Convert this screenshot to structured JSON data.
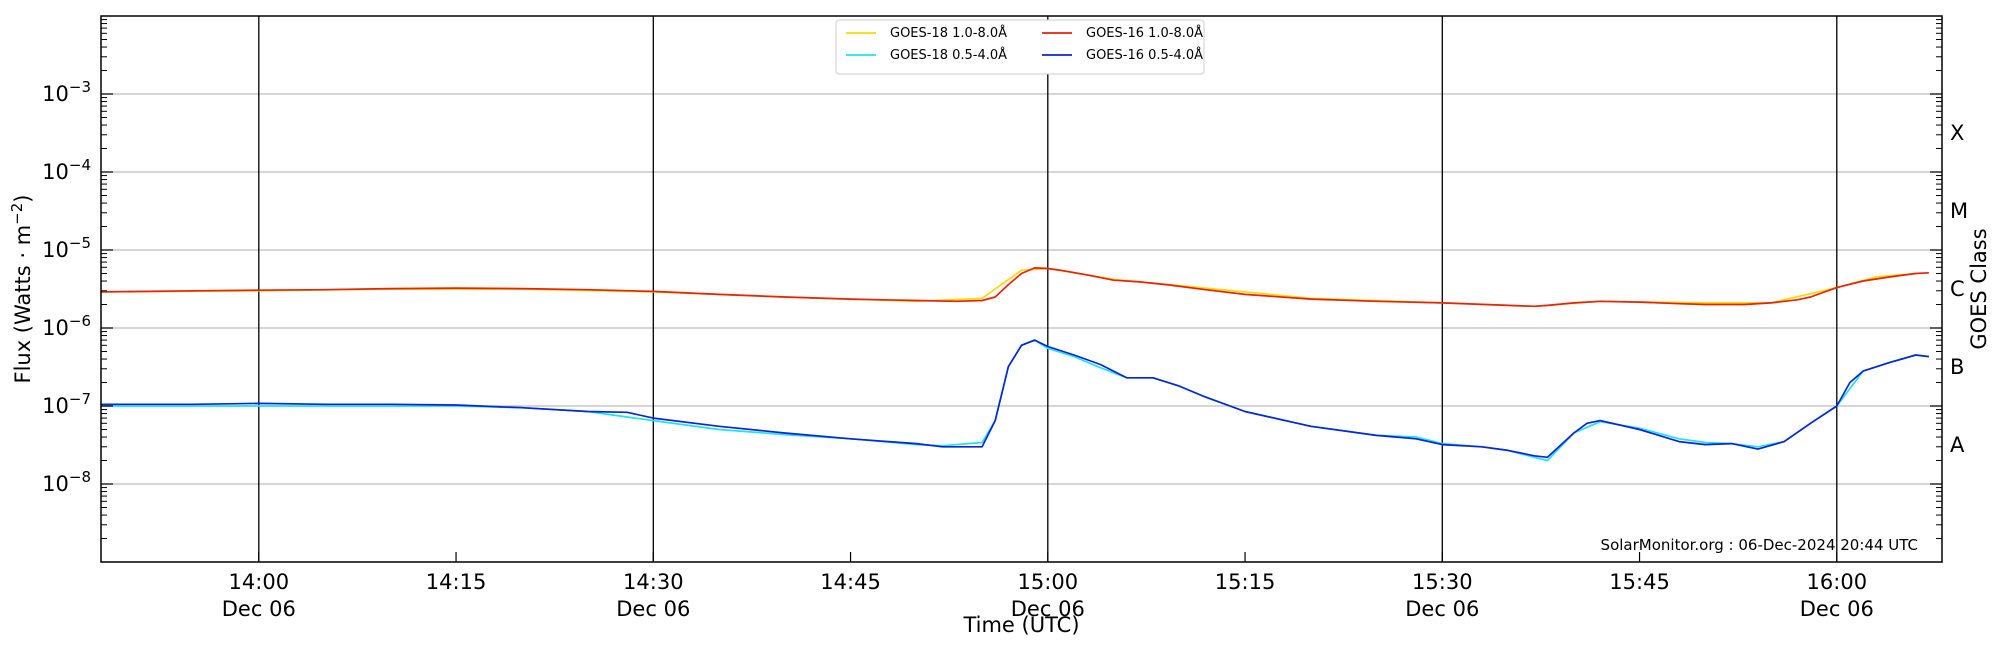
{
  "chart_data": {
    "type": "line",
    "xlabel": "Time (UTC)",
    "ylabel": "Flux (Watts · m⁻²)",
    "y2label": "GOES Class",
    "y_scale": "log",
    "ylim": [
      1e-09,
      0.01
    ],
    "xlim": [
      "13:48",
      "16:08"
    ],
    "x_ticks": [
      {
        "time": "14:00",
        "label": "14:00",
        "date": "Dec 06"
      },
      {
        "time": "14:15",
        "label": "14:15",
        "date": ""
      },
      {
        "time": "14:30",
        "label": "14:30",
        "date": "Dec 06"
      },
      {
        "time": "14:45",
        "label": "14:45",
        "date": ""
      },
      {
        "time": "15:00",
        "label": "15:00",
        "date": "Dec 06"
      },
      {
        "time": "15:15",
        "label": "15:15",
        "date": ""
      },
      {
        "time": "15:30",
        "label": "15:30",
        "date": "Dec 06"
      },
      {
        "time": "15:45",
        "label": "15:45",
        "date": ""
      },
      {
        "time": "16:00",
        "label": "16:00",
        "date": "Dec 06"
      }
    ],
    "y_ticks": [
      {
        "value": 1e-08,
        "base": "10",
        "exp": "−8"
      },
      {
        "value": 1e-07,
        "base": "10",
        "exp": "−7"
      },
      {
        "value": 1e-06,
        "base": "10",
        "exp": "−6"
      },
      {
        "value": 1e-05,
        "base": "10",
        "exp": "−5"
      },
      {
        "value": 0.0001,
        "base": "10",
        "exp": "−4"
      },
      {
        "value": 0.001,
        "base": "10",
        "exp": "−3"
      }
    ],
    "goes_classes": [
      {
        "label": "A",
        "value": 3.16e-08
      },
      {
        "label": "B",
        "value": 3.16e-07
      },
      {
        "label": "C",
        "value": 3.16e-06
      },
      {
        "label": "M",
        "value": 3.16e-05
      },
      {
        "label": "X",
        "value": 0.000316
      }
    ],
    "vlines": [
      "14:00",
      "14:30",
      "15:00",
      "15:30",
      "16:00"
    ],
    "grid": "horizontal at decades",
    "legend_position": "top-center",
    "legend_order": [
      0,
      2,
      1,
      3
    ],
    "series": [
      {
        "name": "GOES-18 1.0-8.0Å",
        "color": "#ffd700",
        "x": [
          "13:48",
          "14:00",
          "14:10",
          "14:20",
          "14:30",
          "14:40",
          "14:50",
          "14:55",
          "14:58",
          "15:00",
          "15:05",
          "15:10",
          "15:20",
          "15:30",
          "15:37",
          "15:42",
          "15:50",
          "15:55",
          "16:00",
          "16:03",
          "16:06"
        ],
        "y": [
          2.9e-06,
          3e-06,
          3.15e-06,
          3.15e-06,
          2.9e-06,
          2.5e-06,
          2.2e-06,
          2.4e-06,
          5.5e-06,
          5.8e-06,
          4.2e-06,
          3.5e-06,
          2.4e-06,
          2.1e-06,
          1.9e-06,
          2.2e-06,
          2.1e-06,
          2.1e-06,
          3.3e-06,
          4.5e-06,
          5e-06
        ]
      },
      {
        "name": "GOES-16 1.0-8.0Å",
        "color": "#e8210c",
        "x": [
          "13:48",
          "13:55",
          "14:00",
          "14:05",
          "14:10",
          "14:15",
          "14:20",
          "14:25",
          "14:30",
          "14:35",
          "14:40",
          "14:45",
          "14:50",
          "14:53",
          "14:55",
          "14:56",
          "14:57",
          "14:58",
          "14:59",
          "15:00",
          "15:01",
          "15:03",
          "15:05",
          "15:07",
          "15:09",
          "15:12",
          "15:15",
          "15:20",
          "15:25",
          "15:30",
          "15:35",
          "15:37",
          "15:38",
          "15:40",
          "15:42",
          "15:45",
          "15:48",
          "15:50",
          "15:53",
          "15:55",
          "15:57",
          "15:58",
          "16:00",
          "16:02",
          "16:04",
          "16:06",
          "16:07"
        ],
        "y": [
          2.9e-06,
          3e-06,
          3.05e-06,
          3.1e-06,
          3.2e-06,
          3.25e-06,
          3.2e-06,
          3.1e-06,
          2.95e-06,
          2.7e-06,
          2.5e-06,
          2.35e-06,
          2.25e-06,
          2.2e-06,
          2.25e-06,
          2.5e-06,
          3.6e-06,
          5e-06,
          5.9e-06,
          5.8e-06,
          5.5e-06,
          4.8e-06,
          4.1e-06,
          3.9e-06,
          3.6e-06,
          3.1e-06,
          2.7e-06,
          2.35e-06,
          2.2e-06,
          2.1e-06,
          1.95e-06,
          1.9e-06,
          1.95e-06,
          2.1e-06,
          2.2e-06,
          2.15e-06,
          2.05e-06,
          2e-06,
          2e-06,
          2.1e-06,
          2.3e-06,
          2.5e-06,
          3.3e-06,
          4e-06,
          4.5e-06,
          5e-06,
          5.1e-06
        ]
      },
      {
        "name": "GOES-18 0.5-4.0Å",
        "color": "#1ee3f0",
        "x": [
          "13:48",
          "14:00",
          "14:05",
          "14:10",
          "14:15",
          "14:20",
          "14:25",
          "14:30",
          "14:35",
          "14:40",
          "14:45",
          "14:50",
          "14:52",
          "14:55",
          "14:56",
          "14:57",
          "14:58",
          "14:59",
          "15:00",
          "15:02",
          "15:04",
          "15:06",
          "15:08",
          "15:10",
          "15:12",
          "15:15",
          "15:20",
          "15:25",
          "15:28",
          "15:30",
          "15:33",
          "15:35",
          "15:37",
          "15:38",
          "15:40",
          "15:42",
          "15:45",
          "15:48",
          "15:50",
          "15:52",
          "15:54",
          "15:56",
          "15:58",
          "16:00",
          "16:02",
          "16:04",
          "16:06",
          "16:07"
        ],
        "y": [
          1e-07,
          1e-07,
          1e-07,
          1e-07,
          1e-07,
          9.5e-08,
          8.5e-08,
          6.5e-08,
          5e-08,
          4.3e-08,
          3.8e-08,
          3.2e-08,
          3.1e-08,
          3.4e-08,
          6.5e-08,
          3.2e-07,
          6e-07,
          7e-07,
          5.5e-07,
          4.3e-07,
          3.1e-07,
          2.3e-07,
          2.3e-07,
          1.8e-07,
          1.3e-07,
          8.5e-08,
          5.5e-08,
          4.2e-08,
          4e-08,
          3.3e-08,
          3e-08,
          2.7e-08,
          2.2e-08,
          2e-08,
          4.5e-08,
          6.3e-08,
          5.2e-08,
          3.8e-08,
          3.4e-08,
          3.3e-08,
          3e-08,
          3.5e-08,
          6e-08,
          1e-07,
          2.8e-07,
          3.6e-07,
          4.5e-07,
          4.3e-07
        ]
      },
      {
        "name": "GOES-16 0.5-4.0Å",
        "color": "#0a24d8",
        "x": [
          "13:48",
          "13:55",
          "14:00",
          "14:05",
          "14:10",
          "14:15",
          "14:20",
          "14:25",
          "14:28",
          "14:30",
          "14:35",
          "14:40",
          "14:45",
          "14:50",
          "14:52",
          "14:55",
          "14:56",
          "14:57",
          "14:58",
          "14:59",
          "15:00",
          "15:02",
          "15:04",
          "15:06",
          "15:08",
          "15:10",
          "15:12",
          "15:15",
          "15:20",
          "15:25",
          "15:28",
          "15:30",
          "15:33",
          "15:35",
          "15:37",
          "15:38",
          "15:40",
          "15:41",
          "15:42",
          "15:45",
          "15:48",
          "15:50",
          "15:52",
          "15:54",
          "15:56",
          "15:58",
          "16:00",
          "16:01",
          "16:02",
          "16:04",
          "16:06",
          "16:07"
        ],
        "y": [
          1.05e-07,
          1.05e-07,
          1.08e-07,
          1.05e-07,
          1.05e-07,
          1.03e-07,
          9.5e-08,
          8.5e-08,
          8.3e-08,
          7e-08,
          5.5e-08,
          4.5e-08,
          3.8e-08,
          3.3e-08,
          3e-08,
          3e-08,
          6.5e-08,
          3.2e-07,
          6e-07,
          7e-07,
          5.8e-07,
          4.5e-07,
          3.4e-07,
          2.3e-07,
          2.3e-07,
          1.8e-07,
          1.3e-07,
          8.5e-08,
          5.5e-08,
          4.2e-08,
          3.8e-08,
          3.2e-08,
          3e-08,
          2.7e-08,
          2.3e-08,
          2.2e-08,
          4.5e-08,
          6e-08,
          6.5e-08,
          5e-08,
          3.5e-08,
          3.2e-08,
          3.3e-08,
          2.8e-08,
          3.5e-08,
          6e-08,
          1e-07,
          2e-07,
          2.8e-07,
          3.6e-07,
          4.5e-07,
          4.3e-07
        ]
      }
    ],
    "credit": "SolarMonitor.org : 06-Dec-2024 20:44 UTC"
  }
}
